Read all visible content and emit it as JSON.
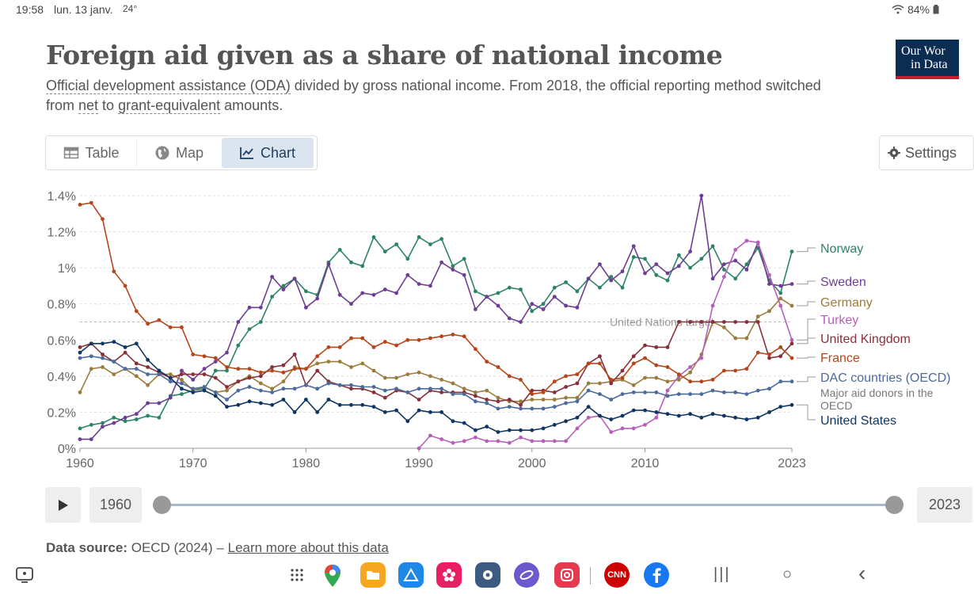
{
  "status": {
    "time": "19:58",
    "date": "lun. 13 janv.",
    "temp": "24°",
    "battery": "84%"
  },
  "header": {
    "title": "Foreign aid given as a share of national income",
    "subtitle_link1": "Official development assistance (ODA)",
    "subtitle_text1": " divided by gross national income. From 2018, the official reporting method switched from ",
    "subtitle_link2": "net",
    "subtitle_text2": " to ",
    "subtitle_link3": "grant-equivalent",
    "subtitle_text3": " amounts.",
    "logo_line1": "Our Wor",
    "logo_line2": "in Data"
  },
  "tabs": {
    "table": "Table",
    "map": "Map",
    "chart": "Chart",
    "settings": "Settings"
  },
  "timeline": {
    "start_year": "1960",
    "end_year": "2023"
  },
  "source": {
    "label": "Data source:",
    "text": "OECD (2024) – ",
    "link": "Learn more about this data"
  },
  "colors": {
    "norway": "#2c8465",
    "sweden": "#6d3e91",
    "germany": "#9a7c3d",
    "turkey": "#b560b8",
    "uk": "#883039",
    "france": "#b4461a",
    "dac": "#4c6a9c",
    "us": "#0f3561"
  },
  "chart_data": {
    "type": "line",
    "title": "Foreign aid given as a share of national income",
    "x_ticks": [
      "1960",
      "1970",
      "1980",
      "1990",
      "2000",
      "2010",
      "2023"
    ],
    "y_ticks": [
      "0%",
      "0.2%",
      "0.4%",
      "0.6%",
      "0.8%",
      "1%",
      "1.2%",
      "1.4%"
    ],
    "xlim": [
      1960,
      2023
    ],
    "ylim": [
      0,
      1.4
    ],
    "target_label": "United Nations target",
    "target_value": 0.7,
    "series": [
      {
        "name": "Norway",
        "color": "#2c8465",
        "start": 1960,
        "values": [
          0.11,
          0.13,
          0.14,
          0.17,
          0.15,
          0.16,
          0.18,
          0.17,
          0.29,
          0.3,
          0.32,
          0.33,
          0.43,
          0.43,
          0.57,
          0.66,
          0.7,
          0.84,
          0.9,
          0.94,
          0.87,
          0.85,
          1.03,
          1.1,
          1.03,
          1.01,
          1.17,
          1.09,
          1.13,
          1.05,
          1.17,
          1.13,
          1.16,
          1.01,
          1.05,
          0.87,
          0.84,
          0.86,
          0.89,
          0.88,
          0.76,
          0.8,
          0.89,
          0.92,
          0.87,
          0.94,
          0.89,
          0.95,
          0.89,
          1.06,
          1.05,
          0.96,
          0.93,
          1.07,
          1.0,
          1.05,
          1.12,
          0.99,
          0.94,
          1.02,
          1.11,
          0.93,
          0.86,
          1.09
        ]
      },
      {
        "name": "Sweden",
        "color": "#6d3e91",
        "start": 1960,
        "values": [
          0.05,
          0.05,
          0.12,
          0.14,
          0.17,
          0.19,
          0.25,
          0.25,
          0.28,
          0.43,
          0.38,
          0.44,
          0.48,
          0.53,
          0.7,
          0.78,
          0.78,
          0.95,
          0.88,
          0.94,
          0.78,
          0.83,
          1.02,
          0.85,
          0.8,
          0.86,
          0.85,
          0.88,
          0.86,
          0.96,
          0.91,
          0.9,
          1.03,
          0.99,
          0.96,
          0.77,
          0.84,
          0.79,
          0.72,
          0.7,
          0.8,
          0.77,
          0.84,
          0.79,
          0.78,
          0.94,
          1.02,
          0.93,
          0.98,
          1.12,
          0.97,
          1.02,
          0.97,
          1.01,
          1.09,
          1.4,
          0.94,
          1.02,
          1.04,
          0.99,
          1.14,
          0.91,
          0.9,
          0.91
        ]
      },
      {
        "name": "Germany",
        "color": "#9a7c3d",
        "start": 1960,
        "values": [
          0.31,
          0.44,
          0.45,
          0.41,
          0.44,
          0.4,
          0.35,
          0.41,
          0.41,
          0.38,
          0.32,
          0.34,
          0.31,
          0.32,
          0.37,
          0.4,
          0.36,
          0.33,
          0.37,
          0.45,
          0.44,
          0.47,
          0.48,
          0.48,
          0.45,
          0.47,
          0.43,
          0.39,
          0.39,
          0.41,
          0.42,
          0.4,
          0.38,
          0.36,
          0.33,
          0.31,
          0.32,
          0.28,
          0.26,
          0.26,
          0.27,
          0.27,
          0.27,
          0.28,
          0.28,
          0.36,
          0.36,
          0.37,
          0.38,
          0.35,
          0.39,
          0.39,
          0.37,
          0.38,
          0.42,
          0.52,
          0.7,
          0.67,
          0.61,
          0.61,
          0.73,
          0.76,
          0.83,
          0.79
        ]
      },
      {
        "name": "Turkey",
        "color": "#b560b8",
        "start": 1990,
        "values": [
          0.0,
          0.07,
          0.05,
          0.03,
          0.04,
          0.06,
          0.04,
          0.04,
          0.03,
          0.06,
          0.04,
          0.04,
          0.04,
          0.04,
          0.11,
          0.17,
          0.18,
          0.09,
          0.11,
          0.11,
          0.13,
          0.17,
          0.32,
          0.4,
          0.45,
          0.5,
          0.79,
          0.95,
          1.1,
          1.15,
          1.14,
          0.96,
          0.79,
          0.6
        ]
      },
      {
        "name": "United Kingdom",
        "color": "#883039",
        "start": 1960,
        "values": [
          0.56,
          0.58,
          0.52,
          0.48,
          0.53,
          0.47,
          0.45,
          0.42,
          0.39,
          0.41,
          0.41,
          0.41,
          0.39,
          0.34,
          0.37,
          0.39,
          0.4,
          0.45,
          0.46,
          0.52,
          0.35,
          0.43,
          0.37,
          0.35,
          0.33,
          0.33,
          0.31,
          0.28,
          0.32,
          0.31,
          0.27,
          0.32,
          0.31,
          0.31,
          0.31,
          0.29,
          0.27,
          0.26,
          0.27,
          0.24,
          0.32,
          0.32,
          0.31,
          0.34,
          0.36,
          0.47,
          0.51,
          0.36,
          0.43,
          0.51,
          0.57,
          0.56,
          0.56,
          0.7,
          0.7,
          0.7,
          0.7,
          0.7,
          0.7,
          0.7,
          0.7,
          0.5,
          0.51,
          0.58
        ]
      },
      {
        "name": "France",
        "color": "#b4461a",
        "start": 1960,
        "values": [
          1.35,
          1.36,
          1.27,
          0.98,
          0.9,
          0.76,
          0.69,
          0.71,
          0.67,
          0.67,
          0.52,
          0.51,
          0.5,
          0.45,
          0.44,
          0.44,
          0.42,
          0.43,
          0.42,
          0.44,
          0.44,
          0.51,
          0.56,
          0.56,
          0.61,
          0.61,
          0.56,
          0.59,
          0.57,
          0.6,
          0.6,
          0.61,
          0.62,
          0.63,
          0.62,
          0.55,
          0.48,
          0.45,
          0.4,
          0.38,
          0.3,
          0.31,
          0.37,
          0.4,
          0.41,
          0.47,
          0.47,
          0.38,
          0.39,
          0.47,
          0.5,
          0.46,
          0.45,
          0.41,
          0.37,
          0.37,
          0.38,
          0.43,
          0.43,
          0.44,
          0.53,
          0.52,
          0.56,
          0.5
        ]
      },
      {
        "name": "DAC countries (OECD)",
        "color": "#4c6a9c",
        "start": 1960,
        "values": [
          0.5,
          0.51,
          0.5,
          0.48,
          0.44,
          0.44,
          0.41,
          0.41,
          0.37,
          0.36,
          0.33,
          0.34,
          0.31,
          0.27,
          0.32,
          0.34,
          0.32,
          0.31,
          0.33,
          0.33,
          0.35,
          0.33,
          0.36,
          0.35,
          0.35,
          0.34,
          0.34,
          0.32,
          0.33,
          0.31,
          0.33,
          0.33,
          0.33,
          0.3,
          0.3,
          0.26,
          0.25,
          0.22,
          0.23,
          0.22,
          0.22,
          0.22,
          0.23,
          0.25,
          0.26,
          0.32,
          0.3,
          0.27,
          0.3,
          0.31,
          0.31,
          0.31,
          0.29,
          0.3,
          0.3,
          0.3,
          0.32,
          0.31,
          0.31,
          0.3,
          0.32,
          0.33,
          0.37,
          0.37
        ]
      },
      {
        "name": "United States",
        "color": "#0f3561",
        "start": 1960,
        "values": [
          0.53,
          0.58,
          0.58,
          0.59,
          0.56,
          0.58,
          0.49,
          0.43,
          0.39,
          0.33,
          0.31,
          0.32,
          0.29,
          0.23,
          0.24,
          0.26,
          0.25,
          0.24,
          0.27,
          0.2,
          0.27,
          0.2,
          0.27,
          0.24,
          0.24,
          0.24,
          0.23,
          0.2,
          0.21,
          0.15,
          0.21,
          0.2,
          0.2,
          0.15,
          0.14,
          0.1,
          0.12,
          0.09,
          0.1,
          0.1,
          0.1,
          0.11,
          0.13,
          0.15,
          0.17,
          0.23,
          0.18,
          0.16,
          0.18,
          0.21,
          0.21,
          0.2,
          0.19,
          0.18,
          0.19,
          0.17,
          0.19,
          0.18,
          0.17,
          0.16,
          0.17,
          0.2,
          0.23,
          0.24
        ]
      }
    ],
    "legend": [
      {
        "name": "Norway",
        "value": 1.09,
        "color": "#2c8465",
        "label_y": 318
      },
      {
        "name": "Sweden",
        "value": 0.91,
        "color": "#6d3e91",
        "label_y": 360
      },
      {
        "name": "Germany",
        "value": 0.79,
        "color": "#9a7c3d",
        "label_y": 386
      },
      {
        "name": "Turkey",
        "value": 0.6,
        "color": "#b560b8",
        "label_y": 408
      },
      {
        "name": "United Kingdom",
        "value": 0.58,
        "color": "#883039",
        "label_y": 432
      },
      {
        "name": "France",
        "value": 0.5,
        "color": "#b4461a",
        "label_y": 456
      },
      {
        "name": "DAC countries (OECD)",
        "value": 0.37,
        "color": "#4c6a9c",
        "label_y": 481,
        "sub1": "Major aid donors in the",
        "sub2": "OECD"
      },
      {
        "name": "United States",
        "value": 0.24,
        "color": "#0f3561",
        "label_y": 535
      }
    ]
  },
  "nav": {
    "cnn": "CNN",
    "menu": "|||",
    "home": "○",
    "back": "‹"
  }
}
